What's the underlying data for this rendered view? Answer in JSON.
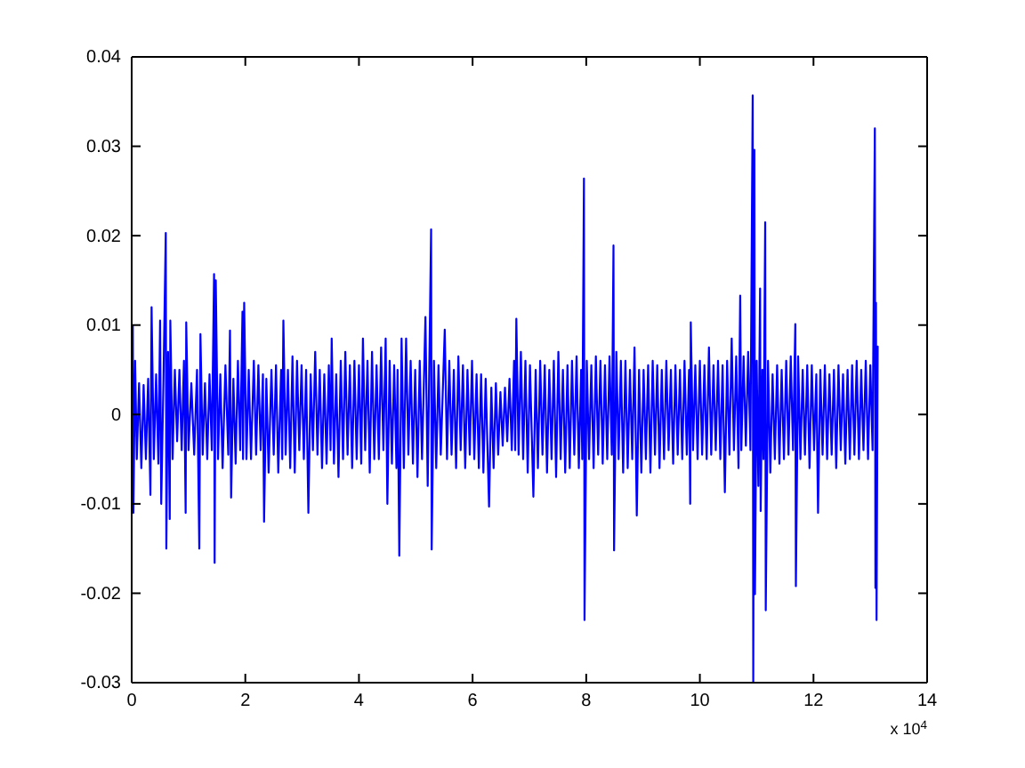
{
  "chart_data": {
    "type": "line",
    "color": "#0000ff",
    "xlim": [
      0,
      14
    ],
    "xticks": [
      0,
      2,
      4,
      6,
      8,
      10,
      12,
      14
    ],
    "ylim": [
      -0.03,
      0.04
    ],
    "yticks": [
      -0.03,
      -0.02,
      -0.01,
      0,
      0.01,
      0.02,
      0.03,
      0.04
    ],
    "annotations": [
      "x 10$^{4}$"
    ],
    "x": [
      0,
      0.02,
      0.03,
      0.06,
      0.09,
      0.13,
      0.17,
      0.21,
      0.25,
      0.29,
      0.33,
      0.35,
      0.39,
      0.43,
      0.47,
      0.5,
      0.52,
      0.56,
      0.6,
      0.61,
      0.64,
      0.67,
      0.68,
      0.72,
      0.76,
      0.8,
      0.84,
      0.88,
      0.92,
      0.95,
      0.96,
      1,
      1.05,
      1.1,
      1.15,
      1.19,
      1.21,
      1.25,
      1.29,
      1.33,
      1.37,
      1.41,
      1.45,
      1.46,
      1.48,
      1.52,
      1.56,
      1.6,
      1.65,
      1.7,
      1.73,
      1.75,
      1.79,
      1.83,
      1.87,
      1.91,
      1.95,
      1.96,
      1.98,
      2.02,
      2.06,
      2.1,
      2.15,
      2.19,
      2.23,
      2.27,
      2.31,
      2.33,
      2.37,
      2.41,
      2.46,
      2.5,
      2.54,
      2.58,
      2.63,
      2.65,
      2.67,
      2.71,
      2.75,
      2.79,
      2.83,
      2.87,
      2.91,
      2.95,
      2.99,
      3.03,
      3.07,
      3.11,
      3.15,
      3.19,
      3.23,
      3.27,
      3.31,
      3.35,
      3.39,
      3.43,
      3.47,
      3.5,
      3.52,
      3.56,
      3.6,
      3.64,
      3.68,
      3.72,
      3.76,
      3.8,
      3.84,
      3.88,
      3.92,
      3.96,
      4,
      4.04,
      4.07,
      4.11,
      4.15,
      4.19,
      4.23,
      4.27,
      4.31,
      4.35,
      4.39,
      4.43,
      4.47,
      4.5,
      4.54,
      4.58,
      4.62,
      4.66,
      4.68,
      4.71,
      4.75,
      4.79,
      4.83,
      4.87,
      4.91,
      4.95,
      4.99,
      5.03,
      5.07,
      5.11,
      5.17,
      5.21,
      5.27,
      5.28,
      5.32,
      5.36,
      5.4,
      5.44,
      5.51,
      5.55,
      5.59,
      5.63,
      5.67,
      5.71,
      5.75,
      5.79,
      5.83,
      5.87,
      5.91,
      5.95,
      5.99,
      6.03,
      6.07,
      6.11,
      6.15,
      6.19,
      6.23,
      6.29,
      6.33,
      6.37,
      6.41,
      6.45,
      6.49,
      6.53,
      6.57,
      6.61,
      6.65,
      6.69,
      6.73,
      6.75,
      6.77,
      6.81,
      6.85,
      6.89,
      6.93,
      6.97,
      7.01,
      7.07,
      7.11,
      7.15,
      7.19,
      7.23,
      7.27,
      7.31,
      7.35,
      7.39,
      7.43,
      7.47,
      7.51,
      7.55,
      7.59,
      7.63,
      7.67,
      7.71,
      7.75,
      7.79,
      7.83,
      7.87,
      7.91,
      7.93,
      7.96,
      7.97,
      8.01,
      8.05,
      8.09,
      8.13,
      8.17,
      8.21,
      8.25,
      8.29,
      8.33,
      8.37,
      8.41,
      8.45,
      8.48,
      8.49,
      8.53,
      8.57,
      8.61,
      8.65,
      8.69,
      8.73,
      8.77,
      8.81,
      8.85,
      8.89,
      8.93,
      8.97,
      9.01,
      9.05,
      9.09,
      9.13,
      9.17,
      9.21,
      9.25,
      9.29,
      9.33,
      9.37,
      9.41,
      9.45,
      9.49,
      9.53,
      9.57,
      9.61,
      9.65,
      9.69,
      9.73,
      9.77,
      9.81,
      9.83,
      9.84,
      9.88,
      9.92,
      9.96,
      10,
      10.04,
      10.08,
      10.12,
      10.16,
      10.2,
      10.24,
      10.28,
      10.32,
      10.36,
      10.4,
      10.44,
      10.48,
      10.52,
      10.56,
      10.6,
      10.64,
      10.68,
      10.71,
      10.73,
      10.77,
      10.81,
      10.85,
      10.89,
      10.93,
      10.94,
      10.96,
      10.97,
      11,
      11.03,
      11.06,
      11.07,
      11.1,
      11.12,
      11.15,
      11.16,
      11.2,
      11.24,
      11.28,
      11.32,
      11.36,
      11.4,
      11.44,
      11.48,
      11.52,
      11.56,
      11.6,
      11.64,
      11.68,
      11.69,
      11.73,
      11.77,
      11.81,
      11.85,
      11.89,
      11.93,
      11.97,
      12.01,
      12.05,
      12.08,
      12.12,
      12.16,
      12.2,
      12.24,
      12.28,
      12.32,
      12.36,
      12.4,
      12.44,
      12.48,
      12.52,
      12.56,
      12.6,
      12.64,
      12.68,
      12.72,
      12.76,
      12.8,
      12.84,
      12.88,
      12.92,
      12.96,
      13,
      13.04,
      13.08,
      13.09,
      13.1,
      13.11,
      13.13
    ],
    "values": [
      0.002,
      0.0099,
      -0.011,
      0.006,
      -0.005,
      0.0035,
      -0.006,
      0.0033,
      -0.005,
      0.004,
      -0.009,
      0.012,
      -0.005,
      0.0045,
      -0.0055,
      0.0105,
      -0.01,
      0.004,
      0.0203,
      -0.015,
      0.007,
      -0.0117,
      0.0105,
      -0.005,
      0.005,
      -0.003,
      0.005,
      -0.004,
      0.006,
      -0.011,
      0.0103,
      -0.004,
      0.0035,
      -0.0045,
      0.005,
      -0.015,
      0.009,
      -0.0045,
      0.0035,
      -0.005,
      0.0045,
      -0.004,
      0.0157,
      -0.0166,
      0.015,
      -0.005,
      0.0045,
      -0.006,
      0.0055,
      -0.0045,
      0.0094,
      -0.0093,
      0.004,
      -0.0055,
      0.006,
      -0.004,
      0.0115,
      -0.005,
      0.0125,
      -0.005,
      0.005,
      -0.005,
      0.006,
      -0.0045,
      0.0055,
      -0.004,
      0.0045,
      -0.012,
      0.004,
      -0.0065,
      0.005,
      -0.0045,
      0.0055,
      -0.0065,
      0.005,
      -0.005,
      0.0105,
      -0.0045,
      0.005,
      -0.006,
      0.0065,
      -0.0065,
      0.006,
      -0.004,
      0.0055,
      -0.005,
      0.005,
      -0.011,
      0.0045,
      -0.004,
      0.007,
      -0.0045,
      0.005,
      -0.006,
      0.0045,
      -0.0055,
      0.0055,
      -0.004,
      0.0085,
      -0.0055,
      0.0045,
      -0.007,
      0.006,
      -0.005,
      0.007,
      -0.0045,
      0.0055,
      -0.006,
      0.006,
      -0.005,
      0.0055,
      -0.0055,
      0.0085,
      -0.004,
      0.006,
      -0.0065,
      0.007,
      -0.005,
      0.0055,
      -0.005,
      0.0075,
      -0.004,
      0.0085,
      -0.01,
      0.006,
      -0.0055,
      0.0055,
      -0.006,
      0.005,
      -0.0158,
      0.0085,
      -0.006,
      0.0085,
      -0.0045,
      0.006,
      -0.0055,
      0.005,
      -0.007,
      0.006,
      -0.005,
      0.0109,
      -0.008,
      0.0207,
      -0.0151,
      0.006,
      -0.006,
      0.0055,
      -0.0045,
      0.0095,
      -0.005,
      0.006,
      -0.0045,
      0.005,
      -0.006,
      0.0065,
      -0.004,
      0.0055,
      -0.006,
      0.005,
      -0.0045,
      0.006,
      -0.005,
      0.0045,
      -0.006,
      0.0045,
      -0.0065,
      0.004,
      -0.0103,
      0.003,
      -0.006,
      0.0035,
      -0.0045,
      0.0025,
      -0.0035,
      0.003,
      -0.003,
      0.004,
      -0.004,
      0.006,
      -0.004,
      0.0107,
      -0.0045,
      0.007,
      -0.005,
      0.006,
      -0.0065,
      0.0055,
      -0.0092,
      0.005,
      -0.006,
      0.006,
      -0.0045,
      0.0055,
      -0.0065,
      0.005,
      -0.005,
      0.006,
      -0.007,
      0.007,
      -0.005,
      0.005,
      -0.0065,
      0.0055,
      -0.006,
      0.006,
      -0.0045,
      0.0065,
      -0.006,
      0.005,
      -0.005,
      0.0264,
      -0.023,
      0.006,
      -0.005,
      0.0055,
      -0.006,
      0.0065,
      -0.0045,
      0.006,
      -0.0055,
      0.0055,
      -0.005,
      0.0065,
      -0.0045,
      0.0189,
      -0.0152,
      0.007,
      -0.005,
      0.006,
      -0.0065,
      0.006,
      -0.006,
      0.005,
      -0.005,
      0.0075,
      -0.0113,
      0.005,
      -0.0065,
      0.005,
      -0.005,
      0.0055,
      -0.0065,
      0.006,
      -0.0045,
      0.0055,
      -0.006,
      0.005,
      -0.005,
      0.006,
      -0.004,
      0.005,
      -0.0055,
      0.0055,
      -0.0045,
      0.005,
      -0.005,
      0.006,
      -0.0045,
      0.005,
      -0.01,
      0.0103,
      -0.004,
      0.0055,
      -0.005,
      0.006,
      -0.0045,
      0.0055,
      -0.005,
      0.0075,
      -0.0045,
      0.0055,
      -0.004,
      0.006,
      -0.005,
      0.0055,
      -0.0087,
      0.006,
      -0.0045,
      0.0085,
      -0.004,
      0.0065,
      -0.006,
      0.0133,
      -0.004,
      0.0065,
      -0.0035,
      0.007,
      -0.004,
      0.0357,
      -0.0299,
      0.0296,
      -0.0201,
      0.006,
      -0.008,
      0.0141,
      -0.0108,
      0.005,
      -0.005,
      0.0215,
      -0.0219,
      0.006,
      -0.0065,
      0.0045,
      -0.005,
      0.0055,
      -0.0055,
      0.005,
      -0.005,
      0.006,
      -0.0045,
      0.0065,
      -0.004,
      0.0101,
      -0.0192,
      0.0065,
      -0.005,
      0.005,
      -0.0045,
      0.0055,
      -0.006,
      0.0055,
      -0.004,
      0.0045,
      -0.011,
      0.005,
      -0.0045,
      0.0055,
      -0.005,
      0.0045,
      -0.0045,
      0.005,
      -0.006,
      0.0055,
      -0.004,
      0.0045,
      -0.0055,
      0.005,
      -0.005,
      0.0055,
      -0.0045,
      0.006,
      -0.005,
      0.005,
      -0.004,
      0.006,
      -0.005,
      0.0055,
      -0.004,
      0.032,
      -0.0194,
      0.0125,
      -0.023,
      0.0076
    ]
  }
}
